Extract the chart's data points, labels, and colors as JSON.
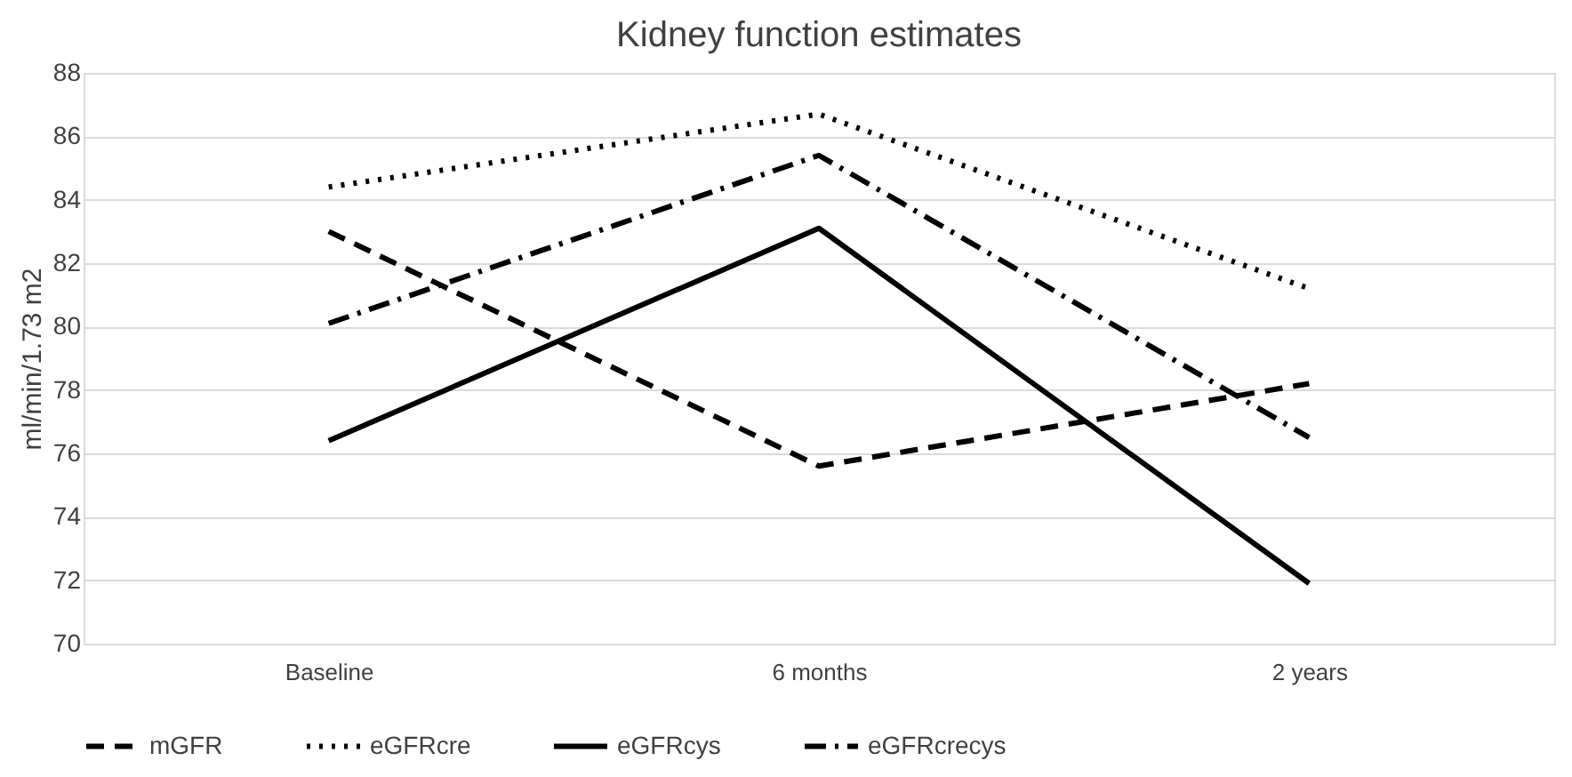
{
  "chart_data": {
    "type": "line",
    "title": "Kidney function estimates",
    "ylabel": "ml/min/1.73 m2",
    "categories": [
      "Baseline",
      "6 months",
      "2 years"
    ],
    "series": [
      {
        "name": "mGFR",
        "color": "#000000",
        "line_style": "dashed",
        "values": [
          83.0,
          75.6,
          78.2
        ]
      },
      {
        "name": "eGFRcre",
        "color": "#000000",
        "line_style": "dotted",
        "values": [
          84.4,
          86.7,
          81.2
        ]
      },
      {
        "name": "eGFRcys",
        "color": "#000000",
        "line_style": "solid",
        "values": [
          76.4,
          83.1,
          71.9
        ]
      },
      {
        "name": "eGFRcrecys",
        "color": "#000000",
        "line_style": "dashdot",
        "values": [
          80.1,
          85.4,
          76.5
        ]
      }
    ],
    "ylim": [
      70,
      88
    ],
    "yticks": [
      70,
      72,
      74,
      76,
      78,
      80,
      82,
      84,
      86,
      88
    ],
    "grid": "y",
    "legend": "bottom",
    "marker": "none"
  }
}
